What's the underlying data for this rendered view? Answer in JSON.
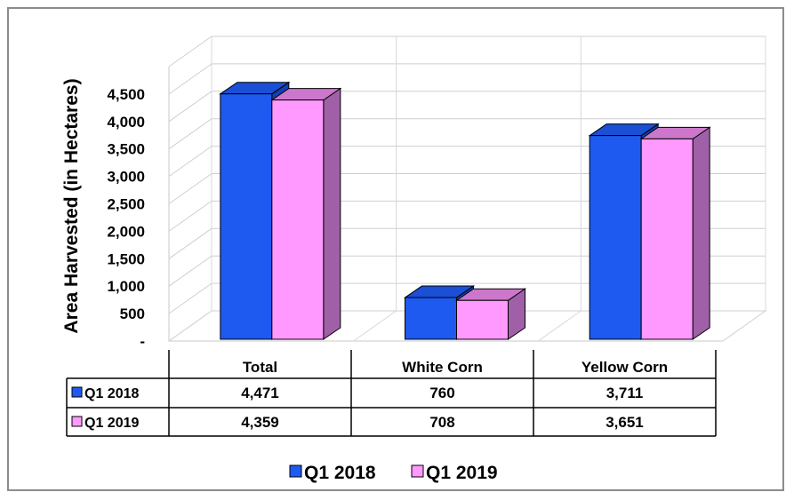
{
  "chart_data": {
    "type": "bar",
    "ylabel": "Area Harvested (in Hectares)",
    "categories": [
      "Total",
      "White Corn",
      "Yellow Corn"
    ],
    "series": [
      {
        "name": "Q1 2018",
        "values": [
          4471,
          760,
          3711
        ],
        "labels": [
          "4,471",
          "760",
          "3,711"
        ],
        "color": "#1f5af0",
        "side_color": "#1240b0",
        "top_color": "#1a4fd6"
      },
      {
        "name": "Q1 2019",
        "values": [
          4359,
          708,
          3651
        ],
        "labels": [
          "4,359",
          "708",
          "3,651"
        ],
        "color": "#ff99ff",
        "side_color": "#a060a8",
        "top_color": "#cc77cc"
      }
    ],
    "yticks": [
      "-",
      "500",
      "1,000",
      "1,500",
      "2,000",
      "2,500",
      "3,000",
      "3,500",
      "4,000",
      "4,500"
    ],
    "ylim": [
      0,
      5000
    ],
    "grid": true,
    "legend": "bottom",
    "data_table": true
  }
}
